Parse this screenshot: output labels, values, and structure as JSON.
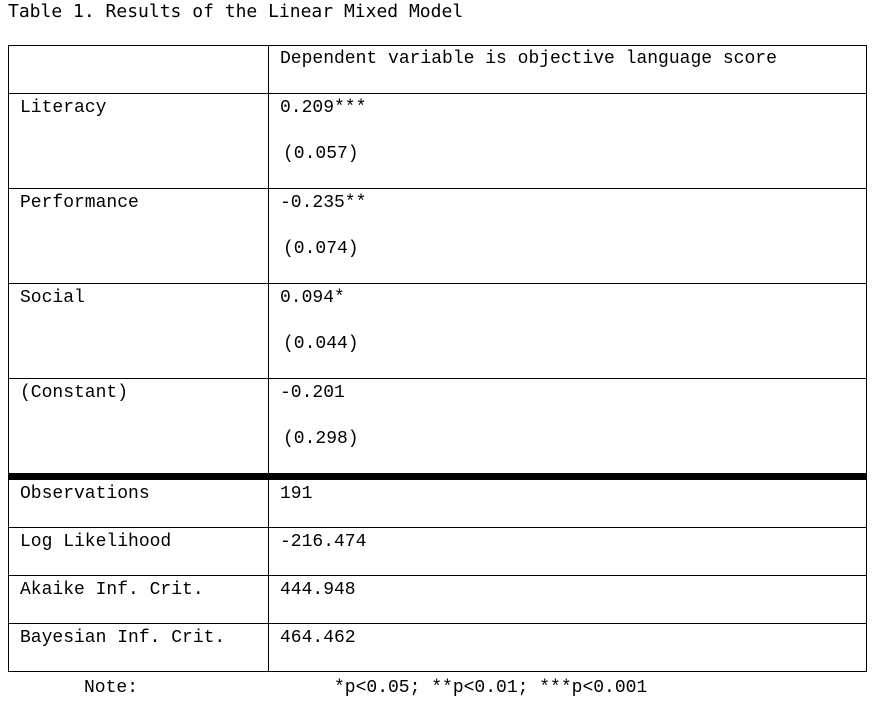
{
  "title": "Table 1. Results of the Linear Mixed Model",
  "header": {
    "left": "",
    "right": "Dependent variable is objective language score"
  },
  "coefficients": [
    {
      "name": "Literacy",
      "estimate": "0.209***",
      "se": "(0.057)"
    },
    {
      "name": "Performance",
      "estimate": "-0.235**",
      "se": "(0.074)"
    },
    {
      "name": "Social",
      "estimate": "0.094*",
      "se": "(0.044)"
    },
    {
      "name": "(Constant)",
      "estimate": "-0.201",
      "se": "(0.298)"
    }
  ],
  "statistics": [
    {
      "name": "Observations",
      "value": "191"
    },
    {
      "name": "Log Likelihood",
      "value": "-216.474"
    },
    {
      "name": "Akaike Inf. Crit.",
      "value": "444.948"
    },
    {
      "name": "Bayesian Inf. Crit.",
      "value": "464.462"
    }
  ],
  "note": {
    "label": "Note:",
    "text": "*p<0.05; **p<0.01; ***p<0.001"
  }
}
